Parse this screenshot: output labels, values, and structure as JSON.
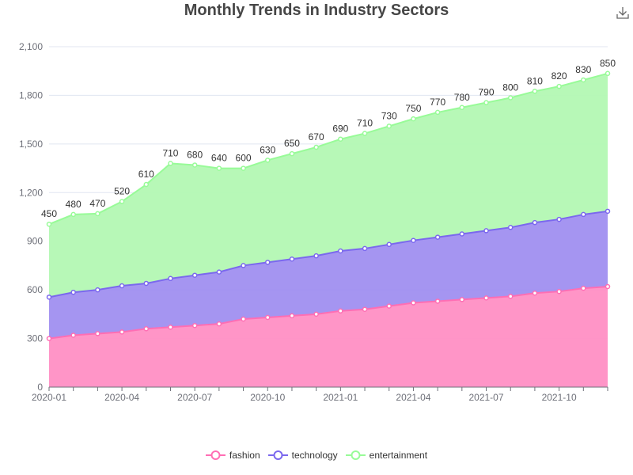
{
  "chart_data": {
    "type": "area",
    "stacked": true,
    "title": "Monthly Trends in Industry Sectors",
    "x": [
      "2020-01",
      "2020-02",
      "2020-03",
      "2020-04",
      "2020-05",
      "2020-06",
      "2020-07",
      "2020-08",
      "2020-09",
      "2020-10",
      "2020-11",
      "2020-12",
      "2021-01",
      "2021-02",
      "2021-03",
      "2021-04",
      "2021-05",
      "2021-06",
      "2021-07",
      "2021-08",
      "2021-09",
      "2021-10",
      "2021-11",
      "2021-12"
    ],
    "x_tick_labels": [
      "2020-01",
      "2020-04",
      "2020-07",
      "2020-10",
      "2021-01",
      "2021-04",
      "2021-07",
      "2021-10"
    ],
    "ylim": [
      0,
      2100
    ],
    "y_ticks": [
      0,
      300,
      600,
      900,
      1200,
      1500,
      1800,
      2100
    ],
    "y_tick_labels": [
      "0",
      "300",
      "600",
      "900",
      "1,200",
      "1,500",
      "1,800",
      "2,100"
    ],
    "legend_position": "bottom-center",
    "series": [
      {
        "name": "fashion",
        "color": "#ff6eb4",
        "fill": "#ff8fc4",
        "values": [
          300,
          320,
          330,
          340,
          360,
          370,
          380,
          390,
          420,
          430,
          440,
          450,
          470,
          480,
          500,
          520,
          530,
          540,
          550,
          560,
          580,
          590,
          610,
          620
        ]
      },
      {
        "name": "technology",
        "color": "#7b68ee",
        "fill": "#a08ff0",
        "values": [
          255,
          265,
          270,
          285,
          280,
          300,
          310,
          320,
          330,
          340,
          350,
          360,
          370,
          375,
          380,
          385,
          395,
          405,
          415,
          425,
          435,
          445,
          455,
          465
        ]
      },
      {
        "name": "entertainment",
        "color": "#98fb98",
        "fill": "#b3f8b3",
        "values": [
          450,
          480,
          470,
          520,
          610,
          710,
          680,
          640,
          600,
          630,
          650,
          670,
          690,
          710,
          730,
          750,
          770,
          780,
          790,
          800,
          810,
          820,
          830,
          850
        ],
        "show_labels": true
      }
    ]
  },
  "toolbar": {
    "download_icon": "download-icon"
  }
}
